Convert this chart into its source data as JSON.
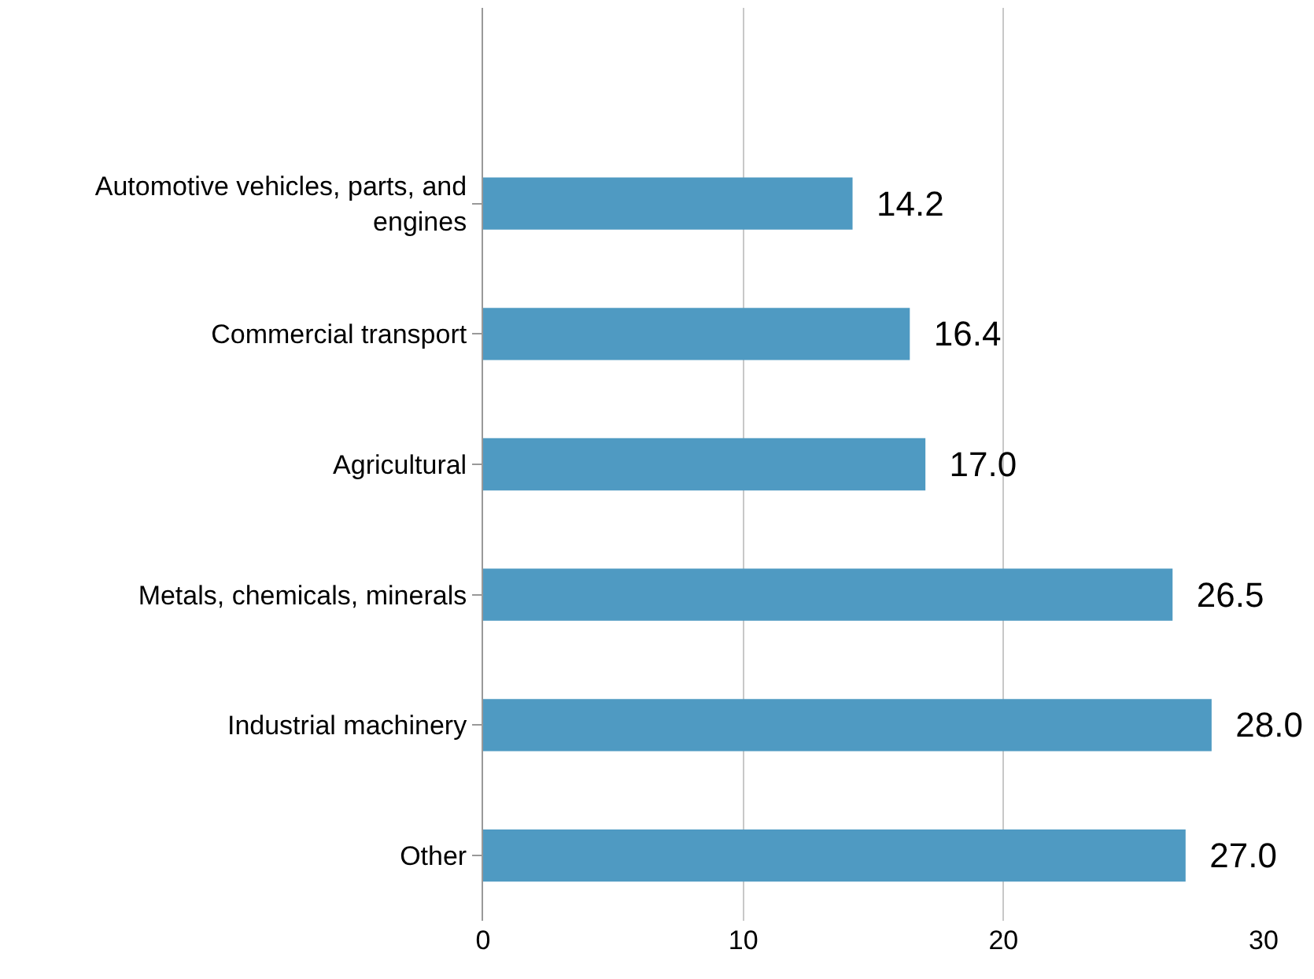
{
  "chart_data": {
    "type": "bar",
    "orientation": "horizontal",
    "categories": [
      null,
      "Automotive vehicles, parts, and engines",
      "Commercial transport",
      "Agricultural",
      "Metals, chemicals, minerals",
      "Industrial machinery",
      "Other"
    ],
    "values": [
      null,
      14.2,
      16.4,
      17.0,
      26.5,
      28.0,
      27.0
    ],
    "color": "#4f9ac2",
    "value_labels": [
      null,
      "14.2",
      "16.4",
      "17.0",
      "26.5",
      "28.0",
      "27.0"
    ],
    "xlim": [
      0,
      30
    ],
    "xticks": [
      0,
      10,
      20,
      30
    ],
    "grid": "x"
  }
}
